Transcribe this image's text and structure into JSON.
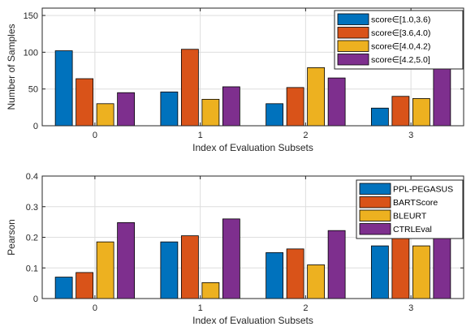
{
  "chart_data": [
    {
      "type": "bar",
      "categories": [
        "0",
        "1",
        "2",
        "3"
      ],
      "xlabel": "Index of Evaluation Subsets",
      "ylabel": "Number of Samples",
      "ylim": [
        0,
        160
      ],
      "yticks": [
        0,
        50,
        100,
        150
      ],
      "grid": true,
      "legend_position": "top-right",
      "series": [
        {
          "name": "score∈[1.0,3.6)",
          "color": "#0072BD",
          "values": [
            102,
            46,
            30,
            24
          ]
        },
        {
          "name": "score∈[3.6,4.0)",
          "color": "#D95319",
          "values": [
            64,
            104,
            52,
            40
          ]
        },
        {
          "name": "score∈[4.0,4.2)",
          "color": "#EDB120",
          "values": [
            30,
            36,
            79,
            37
          ]
        },
        {
          "name": "score∈[4.2,5.0]",
          "color": "#7E2F8E",
          "values": [
            45,
            53,
            65,
            153
          ]
        }
      ]
    },
    {
      "type": "bar",
      "categories": [
        "0",
        "1",
        "2",
        "3"
      ],
      "xlabel": "Index of Evaluation Subsets",
      "ylabel": "Pearson",
      "ylim": [
        0,
        0.4
      ],
      "yticks": [
        0,
        0.1,
        0.2,
        0.3,
        0.4
      ],
      "ytick_labels": [
        "0",
        "0.1",
        "0.2",
        "0.3",
        "0.4"
      ],
      "grid": true,
      "legend_position": "top-right",
      "series": [
        {
          "name": "PPL-PEGASUS",
          "color": "#0072BD",
          "values": [
            0.07,
            0.185,
            0.15,
            0.172
          ]
        },
        {
          "name": "BARTScore",
          "color": "#D95319",
          "values": [
            0.085,
            0.205,
            0.162,
            0.197
          ]
        },
        {
          "name": "BLEURT",
          "color": "#EDB120",
          "values": [
            0.185,
            0.052,
            0.11,
            0.172
          ]
        },
        {
          "name": "CTRLEval",
          "color": "#7E2F8E",
          "values": [
            0.248,
            0.26,
            0.222,
            0.21
          ]
        }
      ]
    }
  ]
}
